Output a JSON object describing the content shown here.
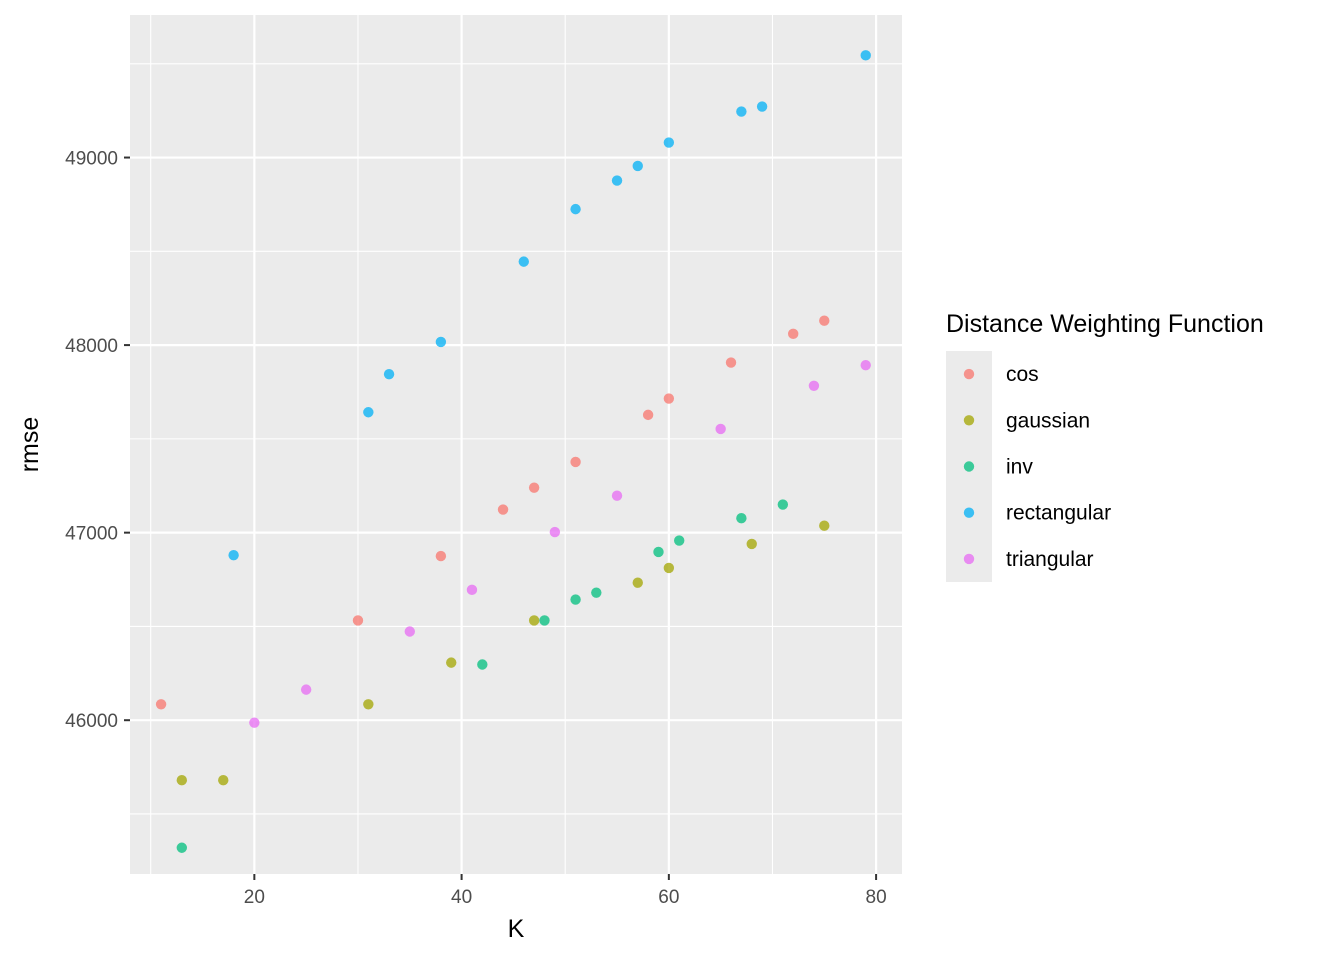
{
  "chart_data": {
    "type": "scatter",
    "title": "",
    "xlabel": "K",
    "ylabel": "rmse",
    "xlim": [
      8,
      82.5
    ],
    "ylim": [
      45180,
      49760
    ],
    "x_ticks": [
      20,
      40,
      60,
      80
    ],
    "y_ticks": [
      46000,
      47000,
      48000,
      49000
    ],
    "x_tick_labels": [
      "20",
      "40",
      "60",
      "80"
    ],
    "y_tick_labels": [
      "46000",
      "47000",
      "48000",
      "49000"
    ],
    "grid": true,
    "legend": {
      "title": "Distance Weighting Function",
      "position": "right"
    },
    "series": [
      {
        "name": "cos",
        "color": "#F8766D",
        "points": [
          [
            11,
            46085
          ],
          [
            30,
            46532
          ],
          [
            38,
            46875
          ],
          [
            44,
            47123
          ],
          [
            47,
            47240
          ],
          [
            51,
            47377
          ],
          [
            58,
            47628
          ],
          [
            60,
            47715
          ],
          [
            66,
            47907
          ],
          [
            72,
            48060
          ],
          [
            75,
            48130
          ]
        ]
      },
      {
        "name": "gaussian",
        "color": "#A3A500",
        "points": [
          [
            13,
            45680
          ],
          [
            17,
            45680
          ],
          [
            31,
            46085
          ],
          [
            39,
            46307
          ],
          [
            47,
            46532
          ],
          [
            57,
            46733
          ],
          [
            60,
            46812
          ],
          [
            68,
            46940
          ],
          [
            75,
            47037
          ]
        ]
      },
      {
        "name": "inv",
        "color": "#00BF7D",
        "points": [
          [
            13,
            45320
          ],
          [
            42,
            46297
          ],
          [
            48,
            46532
          ],
          [
            51,
            46643
          ],
          [
            53,
            46680
          ],
          [
            59,
            46897
          ],
          [
            61,
            46958
          ],
          [
            67,
            47077
          ],
          [
            71,
            47150
          ]
        ]
      },
      {
        "name": "rectangular",
        "color": "#00B0F6",
        "points": [
          [
            18,
            46880
          ],
          [
            31,
            47642
          ],
          [
            33,
            47845
          ],
          [
            38,
            48017
          ],
          [
            46,
            48445
          ],
          [
            51,
            48725
          ],
          [
            55,
            48877
          ],
          [
            57,
            48955
          ],
          [
            60,
            49080
          ],
          [
            67,
            49245
          ],
          [
            69,
            49272
          ],
          [
            79,
            49545
          ]
        ]
      },
      {
        "name": "triangular",
        "color": "#E76BF3",
        "points": [
          [
            20,
            45987
          ],
          [
            25,
            46163
          ],
          [
            35,
            46473
          ],
          [
            41,
            46695
          ],
          [
            49,
            47003
          ],
          [
            55,
            47197
          ],
          [
            65,
            47553
          ],
          [
            74,
            47783
          ],
          [
            79,
            47893
          ]
        ]
      }
    ]
  }
}
